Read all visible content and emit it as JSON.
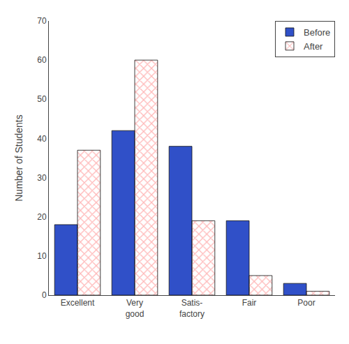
{
  "chart_data": {
    "type": "bar",
    "categories": [
      "Excellent",
      "Very\ngood",
      "Satis-\nfactory",
      "Fair",
      "Poor"
    ],
    "series": [
      {
        "name": "Before",
        "color": "#3050C8",
        "values": [
          18,
          42,
          38,
          19,
          3
        ]
      },
      {
        "name": "After",
        "color": "#E8251A",
        "values": [
          37,
          60,
          19,
          5,
          1
        ]
      }
    ],
    "ylabel": "Number of Students",
    "ylim": [
      0,
      70
    ],
    "yticks": [
      0,
      10,
      20,
      30,
      40,
      50,
      60,
      70
    ],
    "grid": false,
    "legend": "upper right"
  }
}
